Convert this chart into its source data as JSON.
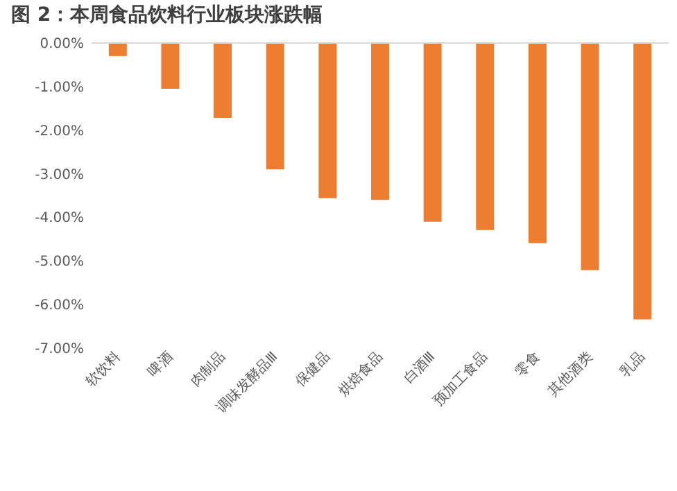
{
  "chart_data": {
    "type": "bar",
    "title": "图 2：本周食品饮料行业板块涨跌幅",
    "categories": [
      "软饮料",
      "啤酒",
      "肉制品",
      "调味发酵品Ⅲ",
      "保健品",
      "烘焙食品",
      "白酒Ⅲ",
      "预加工食品",
      "零食",
      "其他酒类",
      "乳品"
    ],
    "values": [
      -0.3,
      -1.05,
      -1.72,
      -2.9,
      -3.56,
      -3.6,
      -4.1,
      -4.29,
      -4.59,
      -5.21,
      -6.34
    ],
    "color": "#ed7d31",
    "ylim": [
      -7,
      0
    ],
    "yticks": [
      {
        "value": 0,
        "label": "0.00%"
      },
      {
        "value": -1,
        "label": "-1.00%"
      },
      {
        "value": -2,
        "label": "-2.00%"
      },
      {
        "value": -3,
        "label": "-3.00%"
      },
      {
        "value": -4,
        "label": "-4.00%"
      },
      {
        "value": -5,
        "label": "-5.00%"
      },
      {
        "value": -6,
        "label": "-6.00%"
      },
      {
        "value": -7,
        "label": "-7.00%"
      }
    ],
    "grid": false
  }
}
